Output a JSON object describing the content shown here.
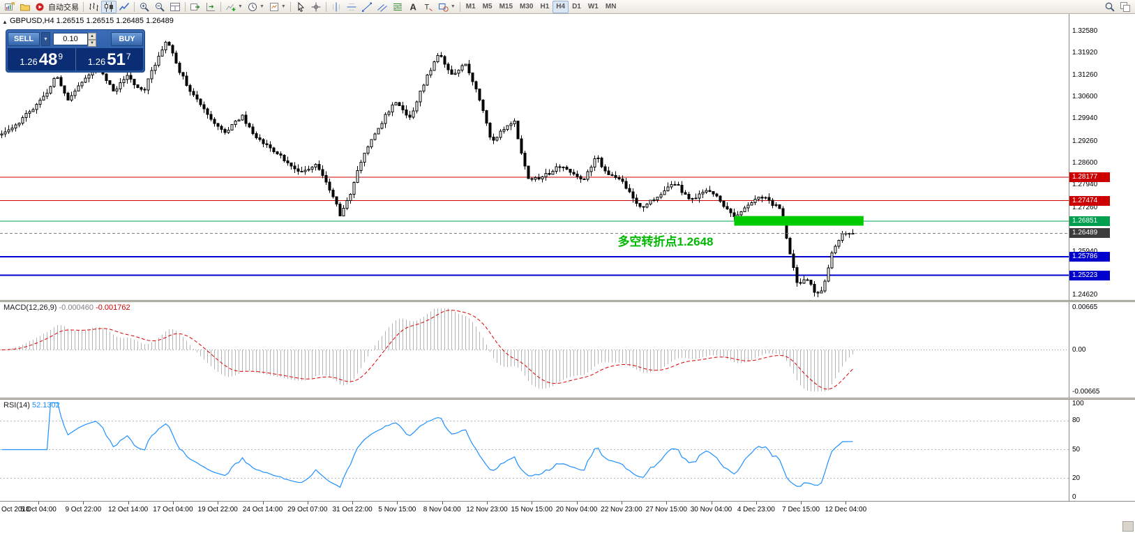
{
  "chart_header": "GBPUSD,H4 1.26515 1.26515 1.26485 1.26489",
  "trade_panel": {
    "sell_label": "SELL",
    "buy_label": "BUY",
    "volume": "0.10",
    "sell_price_big": "1.26",
    "sell_price_mid": "48",
    "sell_price_sup": "9",
    "buy_price_big": "1.26",
    "buy_price_mid": "51",
    "buy_price_sup": "7"
  },
  "toolbar": {
    "timeframes": [
      "M1",
      "M5",
      "M15",
      "M30",
      "H1",
      "H4",
      "D1",
      "W1",
      "MN"
    ],
    "active_timeframe": "H4",
    "groups": [
      {
        "items": [
          {
            "icon": "new-order",
            "name": "new-order-button"
          },
          {
            "icon": "profiles",
            "name": "profiles-button"
          },
          {
            "icon": "autotrade",
            "name": "autotrade-button",
            "label": "自动交易"
          }
        ]
      },
      {
        "items": [
          {
            "icon": "bar-chart",
            "name": "bar-chart-button"
          },
          {
            "icon": "candle-chart",
            "name": "candlestick-chart-button",
            "active": true
          },
          {
            "icon": "line-chart",
            "name": "line-chart-button"
          }
        ]
      },
      {
        "items": [
          {
            "icon": "zoom-in",
            "name": "zoom-in-button"
          },
          {
            "icon": "zoom-out",
            "name": "zoom-out-button"
          },
          {
            "icon": "tile-windows",
            "name": "tile-windows-button"
          }
        ]
      },
      {
        "items": [
          {
            "icon": "auto-scroll",
            "name": "auto-scroll-button"
          },
          {
            "icon": "chart-shift",
            "name": "chart-shift-button"
          }
        ]
      },
      {
        "items": [
          {
            "icon": "indicators",
            "name": "indicators-button",
            "dd": true
          },
          {
            "icon": "periods",
            "name": "periods-button",
            "dd": true
          },
          {
            "icon": "templates",
            "name": "templates-button",
            "dd": true
          }
        ]
      },
      {
        "items": [
          {
            "icon": "cursor",
            "name": "cursor-button"
          },
          {
            "icon": "crosshair",
            "name": "crosshair-button"
          }
        ]
      },
      {
        "items": [
          {
            "icon": "vline",
            "name": "vertical-line-button"
          },
          {
            "icon": "hline",
            "name": "horizontal-line-button"
          },
          {
            "icon": "trendline",
            "name": "trendline-button"
          },
          {
            "icon": "channel",
            "name": "channel-button"
          },
          {
            "icon": "fibo",
            "name": "fibonacci-button"
          },
          {
            "icon": "text",
            "name": "text-button"
          },
          {
            "icon": "label",
            "name": "text-label-button"
          },
          {
            "icon": "shapes",
            "name": "shapes-button",
            "dd": true
          }
        ]
      }
    ],
    "right_items": [
      {
        "icon": "search",
        "name": "search-button"
      },
      {
        "icon": "windows",
        "name": "window-list-button"
      }
    ]
  },
  "chart_data": {
    "type": "candlestick",
    "symbol": "GBPUSD",
    "timeframe": "H4",
    "price_axis": {
      "view_max": 1.331,
      "view_min": 1.2448,
      "labels": [
        "1.32580",
        "1.31920",
        "1.31260",
        "1.30600",
        "1.29940",
        "1.29260",
        "1.28600",
        "1.27940",
        "1.27260",
        "1.25940",
        "1.24620"
      ]
    },
    "candles": {
      "count": 245,
      "spacing": 5,
      "path_anchors": [
        [
          0,
          1.2945
        ],
        [
          0.02,
          1.2985
        ],
        [
          0.049,
          1.306
        ],
        [
          0.065,
          1.3125
        ],
        [
          0.078,
          1.3045
        ],
        [
          0.094,
          1.311
        ],
        [
          0.113,
          1.315
        ],
        [
          0.131,
          1.3075
        ],
        [
          0.147,
          1.312
        ],
        [
          0.167,
          1.308
        ],
        [
          0.186,
          1.3195
        ],
        [
          0.194,
          1.3235
        ],
        [
          0.206,
          1.315
        ],
        [
          0.22,
          1.3085
        ],
        [
          0.241,
          1.3005
        ],
        [
          0.26,
          1.295
        ],
        [
          0.282,
          1.3005
        ],
        [
          0.3,
          1.2935
        ],
        [
          0.331,
          1.2872
        ],
        [
          0.351,
          1.2832
        ],
        [
          0.369,
          1.2856
        ],
        [
          0.384,
          1.279
        ],
        [
          0.398,
          1.2705
        ],
        [
          0.412,
          1.278
        ],
        [
          0.423,
          1.2875
        ],
        [
          0.441,
          1.296
        ],
        [
          0.461,
          1.3045
        ],
        [
          0.48,
          1.3
        ],
        [
          0.5,
          1.3125
        ],
        [
          0.513,
          1.319
        ],
        [
          0.529,
          1.313
        ],
        [
          0.545,
          1.316
        ],
        [
          0.562,
          1.305
        ],
        [
          0.576,
          1.2925
        ],
        [
          0.589,
          1.2965
        ],
        [
          0.602,
          1.299
        ],
        [
          0.611,
          1.289
        ],
        [
          0.62,
          1.2805
        ],
        [
          0.641,
          1.283
        ],
        [
          0.661,
          1.2855
        ],
        [
          0.682,
          1.2805
        ],
        [
          0.698,
          1.288
        ],
        [
          0.712,
          1.283
        ],
        [
          0.731,
          1.28
        ],
        [
          0.751,
          1.2723
        ],
        [
          0.771,
          1.2762
        ],
        [
          0.79,
          1.28
        ],
        [
          0.81,
          1.2752
        ],
        [
          0.831,
          1.2782
        ],
        [
          0.849,
          1.2732
        ],
        [
          0.861,
          1.2692
        ],
        [
          0.875,
          1.2732
        ],
        [
          0.89,
          1.2762
        ],
        [
          0.904,
          1.2742
        ],
        [
          0.916,
          1.2722
        ],
        [
          0.925,
          1.2602
        ],
        [
          0.935,
          1.2492
        ],
        [
          0.945,
          1.2522
        ],
        [
          0.955,
          1.2465
        ],
        [
          0.965,
          1.2478
        ],
        [
          0.976,
          1.26
        ],
        [
          0.986,
          1.2642
        ],
        [
          0.994,
          1.2655
        ],
        [
          1,
          1.2649
        ]
      ]
    },
    "hlines": [
      {
        "price": 1.28177,
        "label": "1.28177",
        "color": "#cc0000",
        "width": 1,
        "name": "resistance-line-upper"
      },
      {
        "price": 1.27474,
        "label": "1.27474",
        "color": "#cc0000",
        "width": 1,
        "name": "resistance-line-lower"
      },
      {
        "price": 1.26851,
        "label": "1.26851",
        "color": "#00a050",
        "width": 1,
        "name": "pivot-line-green"
      },
      {
        "price": 1.25786,
        "label": "1.25786",
        "color": "#0000cc",
        "width": 2,
        "name": "support-line-upper"
      },
      {
        "price": 1.25223,
        "label": "1.25223",
        "color": "#0000cc",
        "width": 2,
        "name": "support-line-lower"
      }
    ],
    "bid_line": {
      "price": 1.26489,
      "label": "1.26489",
      "color": "#808080",
      "badge_color": "#3c3c3c"
    },
    "rectangle": {
      "x1_frac": 0.687,
      "x2_frac": 0.808,
      "price_top": 1.2701,
      "price_bottom": 1.2672,
      "color": "#00ca00"
    },
    "annotation": {
      "text": "多空转折点1.2648",
      "x_frac": 0.578,
      "price": 1.2633,
      "color": "#00b800"
    },
    "macd": {
      "label": "MACD(12,26,9)",
      "value1": "-0.000460",
      "value2": "-0.001762",
      "axis_labels": [
        "0.00665",
        "0.00",
        "-0.00665"
      ],
      "max": 0.00665,
      "histogram_color": "#b4b4b4",
      "signal_color": "#dd0000"
    },
    "rsi": {
      "label": "RSI(14)",
      "value": "52.1302",
      "color": "#1e90ff",
      "levels": [
        80,
        50,
        20
      ],
      "axis_labels": [
        "100",
        "80",
        "50",
        "20",
        "0"
      ],
      "range": [
        0,
        100
      ]
    },
    "time_labels": [
      "Oct 2018",
      "5 Oct 04:00",
      "9 Oct 22:00",
      "12 Oct 14:00",
      "17 Oct 04:00",
      "19 Oct 22:00",
      "24 Oct 14:00",
      "29 Oct 07:00",
      "31 Oct 22:00",
      "5 Nov 15:00",
      "8 Nov 04:00",
      "12 Nov 23:00",
      "15 Nov 15:00",
      "20 Nov 04:00",
      "22 Nov 23:00",
      "27 Nov 15:00",
      "30 Nov 04:00",
      "4 Dec 23:00",
      "7 Dec 15:00",
      "12 Dec 04:00"
    ]
  }
}
